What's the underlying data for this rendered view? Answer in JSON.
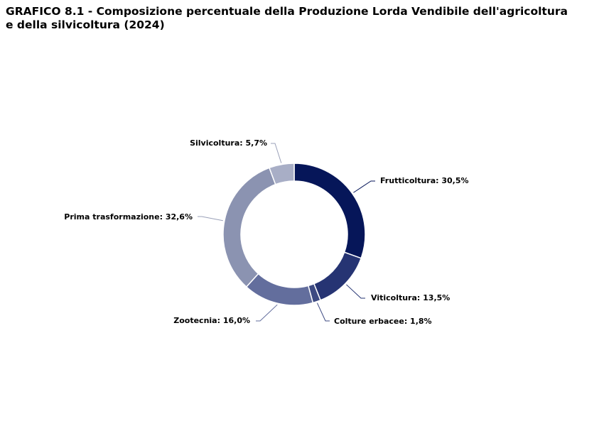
{
  "title_line1": "GRAFICO 8.1 - Composizione percentuale della Produzione Lorda Vendibile dell'agricoltura",
  "title_line2": "e della silvicoltura (2024)",
  "chart_data": {
    "type": "pie",
    "variant": "donut",
    "title": "GRAFICO 8.1 - Composizione percentuale della Produzione Lorda Vendibile dell'agricoltura e della silvicoltura (2024)",
    "slices": [
      {
        "name": "Frutticoltura",
        "value": 30.5,
        "label": "Frutticoltura: 30,5%",
        "color": "#061659"
      },
      {
        "name": "Viticoltura",
        "value": 13.5,
        "label": "Viticoltura: 13,5%",
        "color": "#263473"
      },
      {
        "name": "Colture erbacee",
        "value": 1.8,
        "label": "Colture erbacee: 1,8%",
        "color": "#3d4a82"
      },
      {
        "name": "Zootecnia",
        "value": 16.0,
        "label": "Zootecnia: 16,0%",
        "color": "#636e9d"
      },
      {
        "name": "Prima trasformazione",
        "value": 32.6,
        "label": "Prima trasformazione: 32,6%",
        "color": "#8b93b1"
      },
      {
        "name": "Silvicoltura",
        "value": 5.7,
        "label": "Silvicoltura: 5,7%",
        "color": "#a8aec6"
      }
    ],
    "legend": "none"
  }
}
